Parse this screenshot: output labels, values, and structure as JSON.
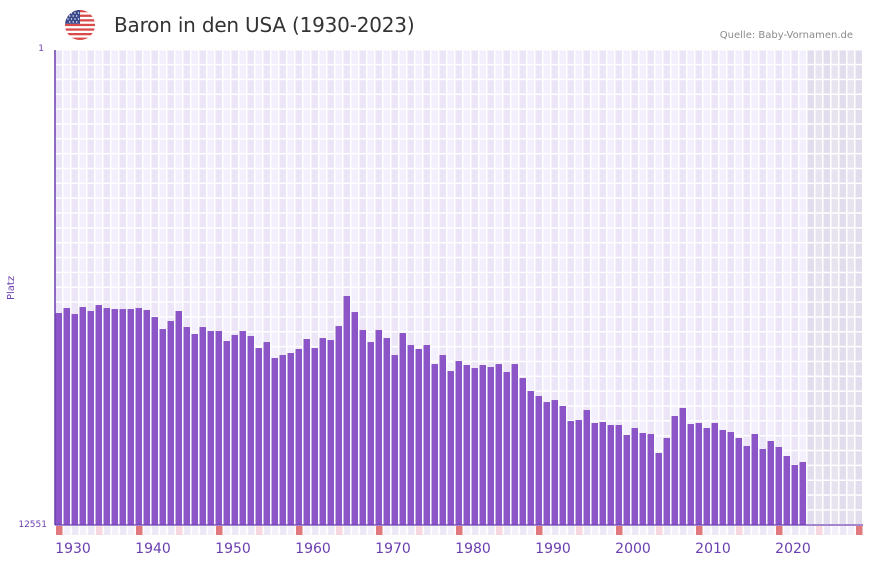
{
  "header": {
    "title": "Baron in den USA (1930-2023)",
    "flag_icon": "usa-flag-icon",
    "source": "Quelle: Baby-Vornamen.de"
  },
  "colors": {
    "bar": "#8b55c8",
    "grid_cell_a": "#f3effc",
    "grid_cell_b": "#ebe5f7",
    "future_cell": "#e2ddec",
    "decade_marker": "#e07a7f",
    "half_decade_marker": "#f6d8de",
    "axis": "#6a3fb0"
  },
  "chart_data": {
    "type": "bar",
    "title": "Baron in den USA (1930-2023)",
    "xlabel": "",
    "ylabel": "Platz",
    "y_inverted": true,
    "ylim": [
      1,
      12551
    ],
    "xlim": [
      1930,
      2030
    ],
    "y_ticks": [
      "1",
      "12551"
    ],
    "x_ticks": [
      "1930",
      "1940",
      "1950",
      "1960",
      "1970",
      "1980",
      "1990",
      "2000",
      "2010",
      "2020"
    ],
    "grid": true,
    "legend": null,
    "x": [
      1930,
      1931,
      1932,
      1933,
      1934,
      1935,
      1936,
      1937,
      1938,
      1939,
      1940,
      1941,
      1942,
      1943,
      1944,
      1945,
      1946,
      1947,
      1948,
      1949,
      1950,
      1951,
      1952,
      1953,
      1954,
      1955,
      1956,
      1957,
      1958,
      1959,
      1960,
      1961,
      1962,
      1963,
      1964,
      1965,
      1966,
      1967,
      1968,
      1969,
      1970,
      1971,
      1972,
      1973,
      1974,
      1975,
      1976,
      1977,
      1978,
      1979,
      1980,
      1981,
      1982,
      1983,
      1984,
      1985,
      1986,
      1987,
      1988,
      1989,
      1990,
      1991,
      1992,
      1993,
      1994,
      1995,
      1996,
      1997,
      1998,
      1999,
      2000,
      2001,
      2002,
      2003,
      2004,
      2005,
      2006,
      2007,
      2008,
      2009,
      2010,
      2011,
      2012,
      2013,
      2014,
      2015,
      2016,
      2017,
      2018,
      2019,
      2020,
      2021,
      2022,
      2023
    ],
    "values": [
      6950,
      6818,
      6977,
      6792,
      6897,
      6739,
      6818,
      6845,
      6845,
      6845,
      6818,
      6871,
      7056,
      7373,
      7162,
      6897,
      7320,
      7505,
      7320,
      7426,
      7426,
      7690,
      7531,
      7426,
      7558,
      7875,
      7717,
      8139,
      8060,
      8007,
      7901,
      7637,
      7875,
      7611,
      7664,
      7294,
      6501,
      6924,
      7399,
      7717,
      7399,
      7611,
      8060,
      7479,
      7796,
      7901,
      7796,
      8298,
      8060,
      8483,
      8219,
      8324,
      8404,
      8324,
      8377,
      8298,
      8509,
      8298,
      8668,
      9011,
      9143,
      9302,
      9249,
      9407,
      9804,
      9777,
      9513,
      9856,
      9830,
      9909,
      9909,
      10173,
      9988,
      10120,
      10147,
      10649,
      10252,
      9671,
      9460,
      9883,
      9856,
      9988,
      9856,
      10041,
      10094,
      10252,
      10464,
      10147,
      10543,
      10332,
      10490,
      10728,
      10966,
      10887
    ]
  }
}
